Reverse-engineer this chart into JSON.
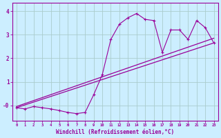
{
  "title": "",
  "xlabel": "Windchill (Refroidissement éolien,°C)",
  "xlim": [
    -0.5,
    23.5
  ],
  "ylim": [
    -0.65,
    4.35
  ],
  "xticks": [
    0,
    1,
    2,
    3,
    4,
    5,
    6,
    7,
    8,
    9,
    10,
    11,
    12,
    13,
    14,
    15,
    16,
    17,
    18,
    19,
    20,
    21,
    22,
    23
  ],
  "yticks": [
    0,
    1,
    2,
    3,
    4
  ],
  "ytick_labels": [
    "-0",
    "1",
    "2",
    "3",
    "4"
  ],
  "bg_color": "#cceeff",
  "line_color": "#990099",
  "grid_color": "#aacccc",
  "curve_x": [
    0,
    1,
    2,
    3,
    4,
    5,
    6,
    7,
    8,
    9,
    10,
    11,
    12,
    13,
    14,
    15,
    16,
    17,
    18,
    19,
    20,
    21,
    22,
    23
  ],
  "curve_y": [
    -0.1,
    -0.15,
    -0.05,
    -0.1,
    -0.15,
    -0.22,
    -0.3,
    -0.35,
    -0.3,
    0.45,
    1.3,
    2.8,
    3.45,
    3.72,
    3.9,
    3.65,
    3.6,
    2.25,
    3.2,
    3.2,
    2.8,
    3.6,
    3.3,
    2.65
  ],
  "line1_x": [
    0,
    23
  ],
  "line1_y": [
    -0.1,
    2.65
  ],
  "line2_x": [
    0,
    23
  ],
  "line2_y": [
    -0.05,
    2.85
  ]
}
